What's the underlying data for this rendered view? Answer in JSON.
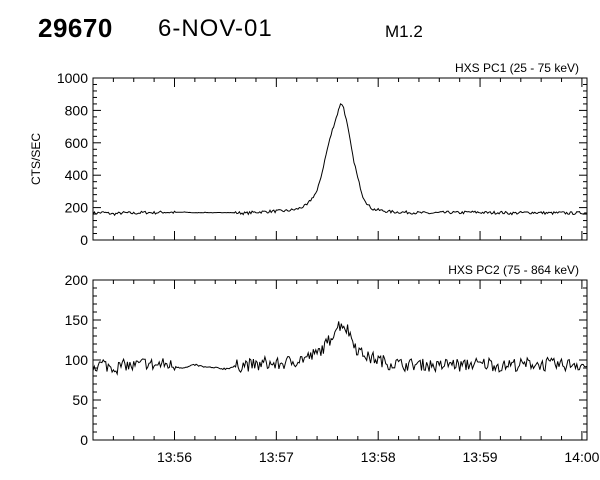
{
  "header": {
    "event_id": "29670",
    "date": "6-NOV-01",
    "flare_class": "M1.2"
  },
  "chart_data": [
    {
      "type": "line",
      "title": "HXS PC1 (25 - 75 keV)",
      "ylabel": "CTS/SEC",
      "xlabel": "",
      "ylim": [
        0,
        1000
      ],
      "yticks": [
        0,
        200,
        400,
        600,
        800,
        1000
      ],
      "xticks": [
        "",
        "",
        "",
        "",
        "",
        ""
      ],
      "grid": false,
      "series": [
        {
          "color": "#000000",
          "points": [
            [
              55.2,
              165
            ],
            [
              55.3,
              170
            ],
            [
              55.4,
              160
            ],
            [
              55.5,
              168
            ],
            [
              55.6,
              165
            ],
            [
              55.7,
              170
            ],
            [
              55.8,
              168
            ],
            [
              55.9,
              172
            ],
            [
              56.0,
              170
            ],
            [
              56.1,
              172
            ],
            [
              56.2,
              168
            ],
            [
              56.3,
              170
            ],
            [
              56.4,
              168
            ],
            [
              56.5,
              170
            ],
            [
              56.6,
              168
            ],
            [
              56.7,
              165
            ],
            [
              56.8,
              172
            ],
            [
              56.9,
              175
            ],
            [
              57.0,
              178
            ],
            [
              57.1,
              180
            ],
            [
              57.2,
              190
            ],
            [
              57.3,
              215
            ],
            [
              57.4,
              300
            ],
            [
              57.45,
              420
            ],
            [
              57.5,
              560
            ],
            [
              57.55,
              680
            ],
            [
              57.6,
              780
            ],
            [
              57.63,
              845
            ],
            [
              57.66,
              820
            ],
            [
              57.7,
              700
            ],
            [
              57.75,
              520
            ],
            [
              57.8,
              380
            ],
            [
              57.85,
              270
            ],
            [
              57.9,
              215
            ],
            [
              57.95,
              190
            ],
            [
              58.0,
              185
            ],
            [
              58.1,
              175
            ],
            [
              58.2,
              172
            ],
            [
              58.3,
              170
            ],
            [
              58.4,
              168
            ],
            [
              58.5,
              165
            ],
            [
              58.6,
              168
            ],
            [
              58.7,
              170
            ],
            [
              58.8,
              168
            ],
            [
              58.9,
              172
            ],
            [
              59.0,
              170
            ],
            [
              59.1,
              168
            ],
            [
              59.2,
              170
            ],
            [
              59.3,
              165
            ],
            [
              59.4,
              168
            ],
            [
              59.5,
              170
            ],
            [
              59.6,
              168
            ],
            [
              59.7,
              166
            ],
            [
              59.8,
              168
            ],
            [
              59.9,
              165
            ],
            [
              60.0,
              168
            ],
            [
              60.05,
              166
            ]
          ]
        }
      ]
    },
    {
      "type": "line",
      "title": "HXS PC2 (75 - 864 keV)",
      "ylabel": "",
      "xlabel": "",
      "ylim": [
        0,
        200
      ],
      "yticks": [
        0,
        50,
        100,
        150,
        200
      ],
      "xticks": [
        "13:56",
        "13:57",
        "13:58",
        "13:59",
        "14:00"
      ],
      "grid": false,
      "series": [
        {
          "color": "#000000",
          "points": [
            [
              55.2,
              92
            ],
            [
              55.3,
              95
            ],
            [
              55.4,
              90
            ],
            [
              55.5,
              94
            ],
            [
              55.6,
              92
            ],
            [
              55.7,
              96
            ],
            [
              55.8,
              93
            ],
            [
              55.9,
              95
            ],
            [
              56.0,
              92
            ],
            [
              56.1,
              90
            ],
            [
              56.2,
              94
            ],
            [
              56.3,
              91
            ],
            [
              56.4,
              90
            ],
            [
              56.5,
              89
            ],
            [
              56.6,
              92
            ],
            [
              56.7,
              95
            ],
            [
              56.8,
              93
            ],
            [
              56.9,
              96
            ],
            [
              57.0,
              94
            ],
            [
              57.1,
              97
            ],
            [
              57.2,
              99
            ],
            [
              57.3,
              103
            ],
            [
              57.4,
              108
            ],
            [
              57.5,
              120
            ],
            [
              57.55,
              132
            ],
            [
              57.6,
              142
            ],
            [
              57.65,
              145
            ],
            [
              57.7,
              138
            ],
            [
              57.75,
              125
            ],
            [
              57.8,
              112
            ],
            [
              57.9,
              104
            ],
            [
              58.0,
              100
            ],
            [
              58.1,
              96
            ],
            [
              58.2,
              95
            ],
            [
              58.3,
              93
            ],
            [
              58.4,
              95
            ],
            [
              58.5,
              94
            ],
            [
              58.6,
              92
            ],
            [
              58.7,
              96
            ],
            [
              58.8,
              93
            ],
            [
              58.9,
              95
            ],
            [
              59.0,
              94
            ],
            [
              59.1,
              96
            ],
            [
              59.2,
              92
            ],
            [
              59.3,
              95
            ],
            [
              59.4,
              93
            ],
            [
              59.5,
              96
            ],
            [
              59.6,
              94
            ],
            [
              59.7,
              95
            ],
            [
              59.8,
              93
            ],
            [
              59.9,
              96
            ],
            [
              60.0,
              94
            ],
            [
              60.05,
              92
            ]
          ]
        }
      ]
    }
  ]
}
